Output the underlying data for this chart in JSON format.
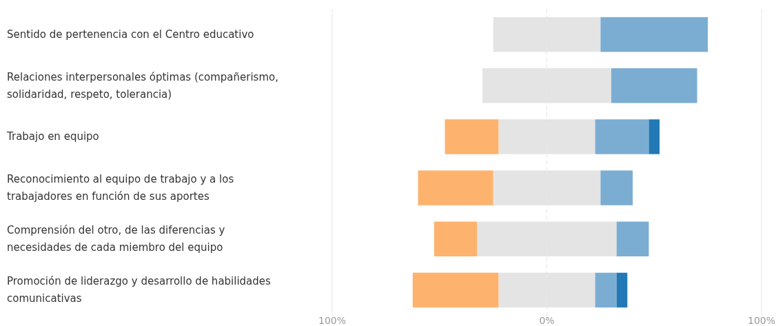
{
  "chart_data": {
    "type": "bar",
    "orientation": "horizontal",
    "stacked": true,
    "categories": [
      "Sentido de pertenencia con el Centro educativo",
      "Relaciones interpersonales óptimas (compañerismo, solidaridad, respeto, tolerancia)",
      "Trabajo en equipo",
      "Reconocimiento al equipo de trabajo y a los trabajadores en función de sus aportes",
      "Comprensión del otro, de las diferencias y necesidades de cada miembro del equipo",
      "Promoción de liderazgo y desarrollo de habilidades comunicativas"
    ],
    "series": [
      {
        "color": "#e4e4e4",
        "values": [
          -25,
          -30,
          -22.5,
          -25,
          -32.5,
          -22.5
        ]
      },
      {
        "color": "#fdb26e",
        "values": [
          null,
          null,
          -25,
          -35,
          -20,
          -40
        ]
      },
      {
        "color": "#e4e4e4",
        "values": [
          25,
          30,
          22.5,
          25,
          32.5,
          22.5
        ]
      },
      {
        "color": "#7badd3",
        "values": [
          50,
          40,
          25,
          15,
          15,
          10
        ]
      },
      {
        "color": "#2279b5",
        "values": [
          null,
          null,
          5,
          null,
          null,
          5
        ]
      }
    ],
    "xlim": [
      -100,
      100
    ],
    "xticks": [
      {
        "value": -100,
        "label": "100%"
      },
      {
        "value": 0,
        "label": "0%"
      },
      {
        "value": 100,
        "label": "100%"
      }
    ],
    "grid": "x"
  }
}
